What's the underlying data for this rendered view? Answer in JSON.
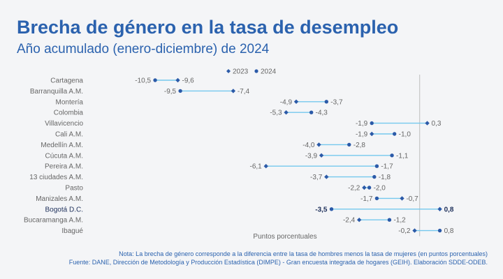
{
  "title": "Brecha de género en la tasa de desempleo",
  "subtitle": "Año acumulado (enero-diciembre) de 2024",
  "note": "Nota: La brecha de género corresponde a la diferencia entre la tasa de hombres menos la tasa de mujeres (en puntos porcentuales)",
  "source": "Fuente: DANE, Dirección de Metodología y Producción Estadística (DIMPE) - Gran encuesta integrada de hogares (GEIH). Elaboración SDDE-ODEB.",
  "colors": {
    "title": "#2b62ae",
    "marker": "#2b5aa8",
    "connector": "#74c8ee",
    "label": "#666666",
    "highlight": "#1d2f5a",
    "zero_line": "#bdbdbd"
  },
  "chart_data": {
    "type": "dumbbell",
    "xlabel": "Puntos porcentuales",
    "ylabel": "",
    "xlim": [
      -11.5,
      1.2
    ],
    "grid": false,
    "legend": "top-center",
    "highlight_category": "Bogotá D.C.",
    "categories": [
      "Cartagena",
      "Barranquilla A.M.",
      "Montería",
      "Colombia",
      "Villavicencio",
      "Cali A.M.",
      "Medellín A.M.",
      "Cúcuta A.M.",
      "Pereira A.M.",
      "13 ciudades A.M.",
      "Pasto",
      "Manizales A.M.",
      "Bogotá D.C.",
      "Bucaramanga A.M.",
      "Ibagué"
    ],
    "series": [
      {
        "name": "2023",
        "marker": "diamond",
        "values": [
          -9.6,
          -7.4,
          -4.9,
          -5.3,
          0.3,
          -1.9,
          -4.0,
          -3.9,
          -6.1,
          -3.7,
          -2.2,
          -0.7,
          0.8,
          -2.4,
          -0.2
        ]
      },
      {
        "name": "2024",
        "marker": "circle",
        "values": [
          -10.5,
          -9.5,
          -3.7,
          -4.3,
          -1.9,
          -1.0,
          -2.8,
          -1.1,
          -1.7,
          -1.8,
          -2.0,
          -1.7,
          -3.5,
          -1.2,
          0.8
        ]
      }
    ],
    "value_labels": [
      [
        "-9,6",
        "-10,5"
      ],
      [
        "-7,4",
        "-9,5"
      ],
      [
        "-4,9",
        "-3,7"
      ],
      [
        "-5,3",
        "-4,3"
      ],
      [
        "0,3",
        "-1,9"
      ],
      [
        "-1,9",
        "-1,0"
      ],
      [
        "-4,0",
        "-2,8"
      ],
      [
        "-3,9",
        "-1,1"
      ],
      [
        "-6,1",
        "-1,7"
      ],
      [
        "-3,7",
        "-1,8"
      ],
      [
        "-2,2",
        "-2,0"
      ],
      [
        "-0,7",
        "-1,7"
      ],
      [
        "0,8",
        "-3,5"
      ],
      [
        "-2,4",
        "-1,2"
      ],
      [
        "-0,2",
        "0,8"
      ]
    ]
  }
}
